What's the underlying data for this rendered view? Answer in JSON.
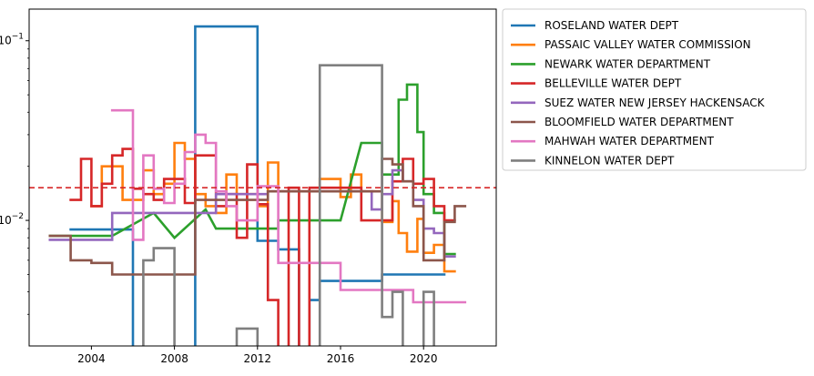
{
  "chart_data": {
    "type": "line",
    "title": "",
    "xlabel": "",
    "ylabel": "",
    "yscale": "log",
    "xlim": [
      2001,
      2023.5
    ],
    "ylim": [
      0.002,
      0.15
    ],
    "x_ticks": [
      {
        "value": 2004,
        "label": "2004"
      },
      {
        "value": 2008,
        "label": "2008"
      },
      {
        "value": 2012,
        "label": "2012"
      },
      {
        "value": 2016,
        "label": "2016"
      },
      {
        "value": 2020,
        "label": "2020"
      }
    ],
    "y_ticks": [
      {
        "value": 0.01,
        "base": "10",
        "exp": "−2"
      },
      {
        "value": 0.1,
        "base": "10",
        "exp": "−1"
      }
    ],
    "grid": false,
    "legend_position": "outside right, top",
    "reference_line": {
      "y": 0.0152,
      "color": "#d62728",
      "style": "dashed"
    },
    "series": [
      {
        "name": "ROSELAND WATER DEPT",
        "color": "#1f77b4",
        "points": [
          [
            2003,
            0.0089
          ],
          [
            2006,
            0.0089
          ],
          [
            2006,
            0.0015
          ],
          [
            2009,
            0.0015
          ],
          [
            2009,
            0.12
          ],
          [
            2012,
            0.12
          ],
          [
            2012,
            0.0077
          ],
          [
            2013,
            0.0077
          ],
          [
            2013,
            0.0069
          ],
          [
            2014,
            0.0069
          ],
          [
            2014,
            0.0015
          ],
          [
            2014.5,
            0.0015
          ],
          [
            2014.5,
            0.0036
          ],
          [
            2015,
            0.0036
          ],
          [
            2015,
            0.0046
          ],
          [
            2018,
            0.0046
          ],
          [
            2018,
            0.005
          ],
          [
            2021,
            0.005
          ]
        ]
      },
      {
        "name": "PASSAIC VALLEY WATER COMMISSION",
        "color": "#ff7f0e",
        "points": [
          [
            2004,
            0.012
          ],
          [
            2004.5,
            0.012
          ],
          [
            2004.5,
            0.02
          ],
          [
            2005.5,
            0.02
          ],
          [
            2005.5,
            0.013
          ],
          [
            2006.5,
            0.013
          ],
          [
            2006.5,
            0.019
          ],
          [
            2007,
            0.019
          ],
          [
            2007,
            0.014
          ],
          [
            2007.5,
            0.014
          ],
          [
            2007.5,
            0.016
          ],
          [
            2008,
            0.016
          ],
          [
            2008,
            0.027
          ],
          [
            2008.5,
            0.027
          ],
          [
            2008.5,
            0.022
          ],
          [
            2009,
            0.022
          ],
          [
            2009,
            0.014
          ],
          [
            2009.5,
            0.014
          ],
          [
            2009.5,
            0.012
          ],
          [
            2010,
            0.012
          ],
          [
            2010,
            0.011
          ],
          [
            2010.5,
            0.011
          ],
          [
            2010.5,
            0.018
          ],
          [
            2011,
            0.018
          ],
          [
            2011,
            0.014
          ],
          [
            2012,
            0.014
          ],
          [
            2012,
            0.012
          ],
          [
            2012.5,
            0.012
          ],
          [
            2012.5,
            0.021
          ],
          [
            2013,
            0.021
          ],
          [
            2013,
            0.0145
          ],
          [
            2015,
            0.0145
          ],
          [
            2015,
            0.017
          ],
          [
            2016,
            0.017
          ],
          [
            2016,
            0.0135
          ],
          [
            2016.5,
            0.0135
          ],
          [
            2016.5,
            0.018
          ],
          [
            2017,
            0.018
          ],
          [
            2017,
            0.0145
          ],
          [
            2018,
            0.0145
          ],
          [
            2018,
            0.0098
          ],
          [
            2018.5,
            0.0098
          ],
          [
            2018.5,
            0.0128
          ],
          [
            2018.8,
            0.0128
          ],
          [
            2018.8,
            0.0085
          ],
          [
            2019.2,
            0.0085
          ],
          [
            2019.2,
            0.0067
          ],
          [
            2019.7,
            0.0067
          ],
          [
            2019.7,
            0.0102
          ],
          [
            2020,
            0.0102
          ],
          [
            2020,
            0.0066
          ],
          [
            2020.5,
            0.0066
          ],
          [
            2020.5,
            0.0073
          ],
          [
            2021,
            0.0073
          ],
          [
            2021,
            0.0052
          ],
          [
            2021.5,
            0.0052
          ]
        ]
      },
      {
        "name": "NEWARK WATER DEPARTMENT",
        "color": "#2ca02c",
        "points": [
          [
            2002,
            0.0082
          ],
          [
            2005,
            0.0082
          ],
          [
            2007,
            0.011
          ],
          [
            2008,
            0.008
          ],
          [
            2009.5,
            0.0115
          ],
          [
            2010,
            0.009
          ],
          [
            2013,
            0.009
          ],
          [
            2013,
            0.01
          ],
          [
            2015,
            0.01
          ],
          [
            2016,
            0.01
          ],
          [
            2017,
            0.027
          ],
          [
            2018,
            0.027
          ],
          [
            2018,
            0.018
          ],
          [
            2018.8,
            0.018
          ],
          [
            2018.8,
            0.047
          ],
          [
            2019.2,
            0.047
          ],
          [
            2019.2,
            0.057
          ],
          [
            2019.7,
            0.057
          ],
          [
            2019.7,
            0.031
          ],
          [
            2020,
            0.031
          ],
          [
            2020,
            0.014
          ],
          [
            2020.5,
            0.014
          ],
          [
            2020.5,
            0.011
          ],
          [
            2021,
            0.011
          ],
          [
            2021,
            0.0065
          ],
          [
            2021.5,
            0.0065
          ]
        ]
      },
      {
        "name": "BELLEVILLE WATER DEPT",
        "color": "#d62728",
        "points": [
          [
            2003,
            0.013
          ],
          [
            2003.5,
            0.013
          ],
          [
            2003.5,
            0.022
          ],
          [
            2004,
            0.022
          ],
          [
            2004,
            0.012
          ],
          [
            2004.5,
            0.012
          ],
          [
            2004.5,
            0.016
          ],
          [
            2005,
            0.016
          ],
          [
            2005,
            0.023
          ],
          [
            2005.5,
            0.023
          ],
          [
            2005.5,
            0.025
          ],
          [
            2006,
            0.025
          ],
          [
            2006,
            0.015
          ],
          [
            2006.5,
            0.015
          ],
          [
            2006.5,
            0.014
          ],
          [
            2007,
            0.014
          ],
          [
            2007,
            0.013
          ],
          [
            2007.5,
            0.013
          ],
          [
            2007.5,
            0.017
          ],
          [
            2008.5,
            0.017
          ],
          [
            2008.5,
            0.0125
          ],
          [
            2009,
            0.0125
          ],
          [
            2009,
            0.023
          ],
          [
            2010,
            0.023
          ],
          [
            2010,
            0.012
          ],
          [
            2010.5,
            0.012
          ],
          [
            2010.5,
            0.014
          ],
          [
            2011,
            0.014
          ],
          [
            2011,
            0.008
          ],
          [
            2011.5,
            0.008
          ],
          [
            2011.5,
            0.0205
          ],
          [
            2012,
            0.0205
          ],
          [
            2012,
            0.0123
          ],
          [
            2012.5,
            0.0123
          ],
          [
            2012.5,
            0.0036
          ],
          [
            2013,
            0.0036
          ],
          [
            2013,
            0.0015
          ],
          [
            2013.5,
            0.0015
          ],
          [
            2013.5,
            0.0152
          ],
          [
            2014,
            0.0152
          ],
          [
            2014,
            0.0015
          ],
          [
            2014.5,
            0.0015
          ],
          [
            2014.5,
            0.0152
          ],
          [
            2015,
            0.0152
          ],
          [
            2015,
            0.0152
          ],
          [
            2017,
            0.0152
          ],
          [
            2017,
            0.01
          ],
          [
            2018.5,
            0.01
          ],
          [
            2018.5,
            0.0165
          ],
          [
            2019,
            0.0165
          ],
          [
            2019,
            0.022
          ],
          [
            2019.5,
            0.022
          ],
          [
            2019.5,
            0.016
          ],
          [
            2020,
            0.016
          ],
          [
            2020,
            0.017
          ],
          [
            2020.5,
            0.017
          ],
          [
            2020.5,
            0.012
          ],
          [
            2021,
            0.012
          ],
          [
            2021,
            0.01
          ],
          [
            2021.5,
            0.01
          ]
        ]
      },
      {
        "name": "SUEZ WATER NEW JERSEY HACKENSACK",
        "color": "#9467bd",
        "points": [
          [
            2002,
            0.0078
          ],
          [
            2005,
            0.0078
          ],
          [
            2005,
            0.011
          ],
          [
            2010,
            0.011
          ],
          [
            2010,
            0.014
          ],
          [
            2012.5,
            0.014
          ],
          [
            2012.5,
            0.0145
          ],
          [
            2017.5,
            0.0145
          ],
          [
            2017.5,
            0.0115
          ],
          [
            2018,
            0.0115
          ],
          [
            2018,
            0.014
          ],
          [
            2018.5,
            0.014
          ],
          [
            2018.5,
            0.019
          ],
          [
            2019,
            0.019
          ],
          [
            2019,
            0.0165
          ],
          [
            2019.5,
            0.0165
          ],
          [
            2019.5,
            0.013
          ],
          [
            2020,
            0.013
          ],
          [
            2020,
            0.009
          ],
          [
            2020.5,
            0.009
          ],
          [
            2020.5,
            0.0085
          ],
          [
            2021,
            0.0085
          ],
          [
            2021,
            0.0063
          ],
          [
            2021.5,
            0.0063
          ]
        ]
      },
      {
        "name": "BLOOMFIELD WATER DEPARTMENT",
        "color": "#8c564b",
        "points": [
          [
            2002,
            0.0082
          ],
          [
            2003,
            0.0082
          ],
          [
            2003,
            0.006
          ],
          [
            2004,
            0.006
          ],
          [
            2004,
            0.0058
          ],
          [
            2005,
            0.0058
          ],
          [
            2005,
            0.005
          ],
          [
            2009,
            0.005
          ],
          [
            2009,
            0.013
          ],
          [
            2012.5,
            0.013
          ],
          [
            2012.5,
            0.0145
          ],
          [
            2018,
            0.0145
          ],
          [
            2018,
            0.022
          ],
          [
            2018.5,
            0.022
          ],
          [
            2018.5,
            0.0205
          ],
          [
            2019,
            0.0205
          ],
          [
            2019,
            0.0165
          ],
          [
            2019.5,
            0.0165
          ],
          [
            2019.5,
            0.012
          ],
          [
            2020,
            0.012
          ],
          [
            2020,
            0.006
          ],
          [
            2021,
            0.006
          ],
          [
            2021,
            0.0098
          ],
          [
            2021.5,
            0.0098
          ],
          [
            2021.5,
            0.012
          ],
          [
            2022,
            0.012
          ]
        ]
      },
      {
        "name": "MAHWAH WATER DEPARTMENT",
        "color": "#e377c2",
        "points": [
          [
            2005,
            0.041
          ],
          [
            2006,
            0.041
          ],
          [
            2006,
            0.0078
          ],
          [
            2006.5,
            0.0078
          ],
          [
            2006.5,
            0.023
          ],
          [
            2007,
            0.023
          ],
          [
            2007,
            0.015
          ],
          [
            2007.5,
            0.015
          ],
          [
            2007.5,
            0.0125
          ],
          [
            2008,
            0.0125
          ],
          [
            2008,
            0.016
          ],
          [
            2008.5,
            0.016
          ],
          [
            2008.5,
            0.024
          ],
          [
            2009,
            0.024
          ],
          [
            2009,
            0.03
          ],
          [
            2009.5,
            0.03
          ],
          [
            2009.5,
            0.027
          ],
          [
            2010,
            0.027
          ],
          [
            2010,
            0.0145
          ],
          [
            2010.5,
            0.0145
          ],
          [
            2010.5,
            0.012
          ],
          [
            2011,
            0.012
          ],
          [
            2011,
            0.01
          ],
          [
            2012,
            0.01
          ],
          [
            2012,
            0.0155
          ],
          [
            2013,
            0.0155
          ],
          [
            2013,
            0.0058
          ],
          [
            2016,
            0.0058
          ],
          [
            2016,
            0.0041
          ],
          [
            2019.5,
            0.0041
          ],
          [
            2019.5,
            0.0035
          ],
          [
            2022,
            0.0035
          ]
        ]
      },
      {
        "name": "KINNELON WATER DEPT",
        "color": "#7f7f7f",
        "points": [
          [
            2006.5,
            0.0015
          ],
          [
            2006.5,
            0.006
          ],
          [
            2007,
            0.006
          ],
          [
            2007,
            0.007
          ],
          [
            2008,
            0.007
          ],
          [
            2008,
            0.0015
          ],
          [
            2011,
            0.0015
          ],
          [
            2011,
            0.0025
          ],
          [
            2012,
            0.0025
          ],
          [
            2012,
            0.0015
          ],
          [
            2015,
            0.0015
          ],
          [
            2015,
            0.073
          ],
          [
            2018,
            0.073
          ],
          [
            2018,
            0.0029
          ],
          [
            2018.5,
            0.0029
          ],
          [
            2018.5,
            0.004
          ],
          [
            2019,
            0.004
          ],
          [
            2019,
            0.0015
          ],
          [
            2020,
            0.0015
          ],
          [
            2020,
            0.004
          ],
          [
            2020.5,
            0.004
          ],
          [
            2020.5,
            0.0015
          ]
        ]
      }
    ]
  }
}
